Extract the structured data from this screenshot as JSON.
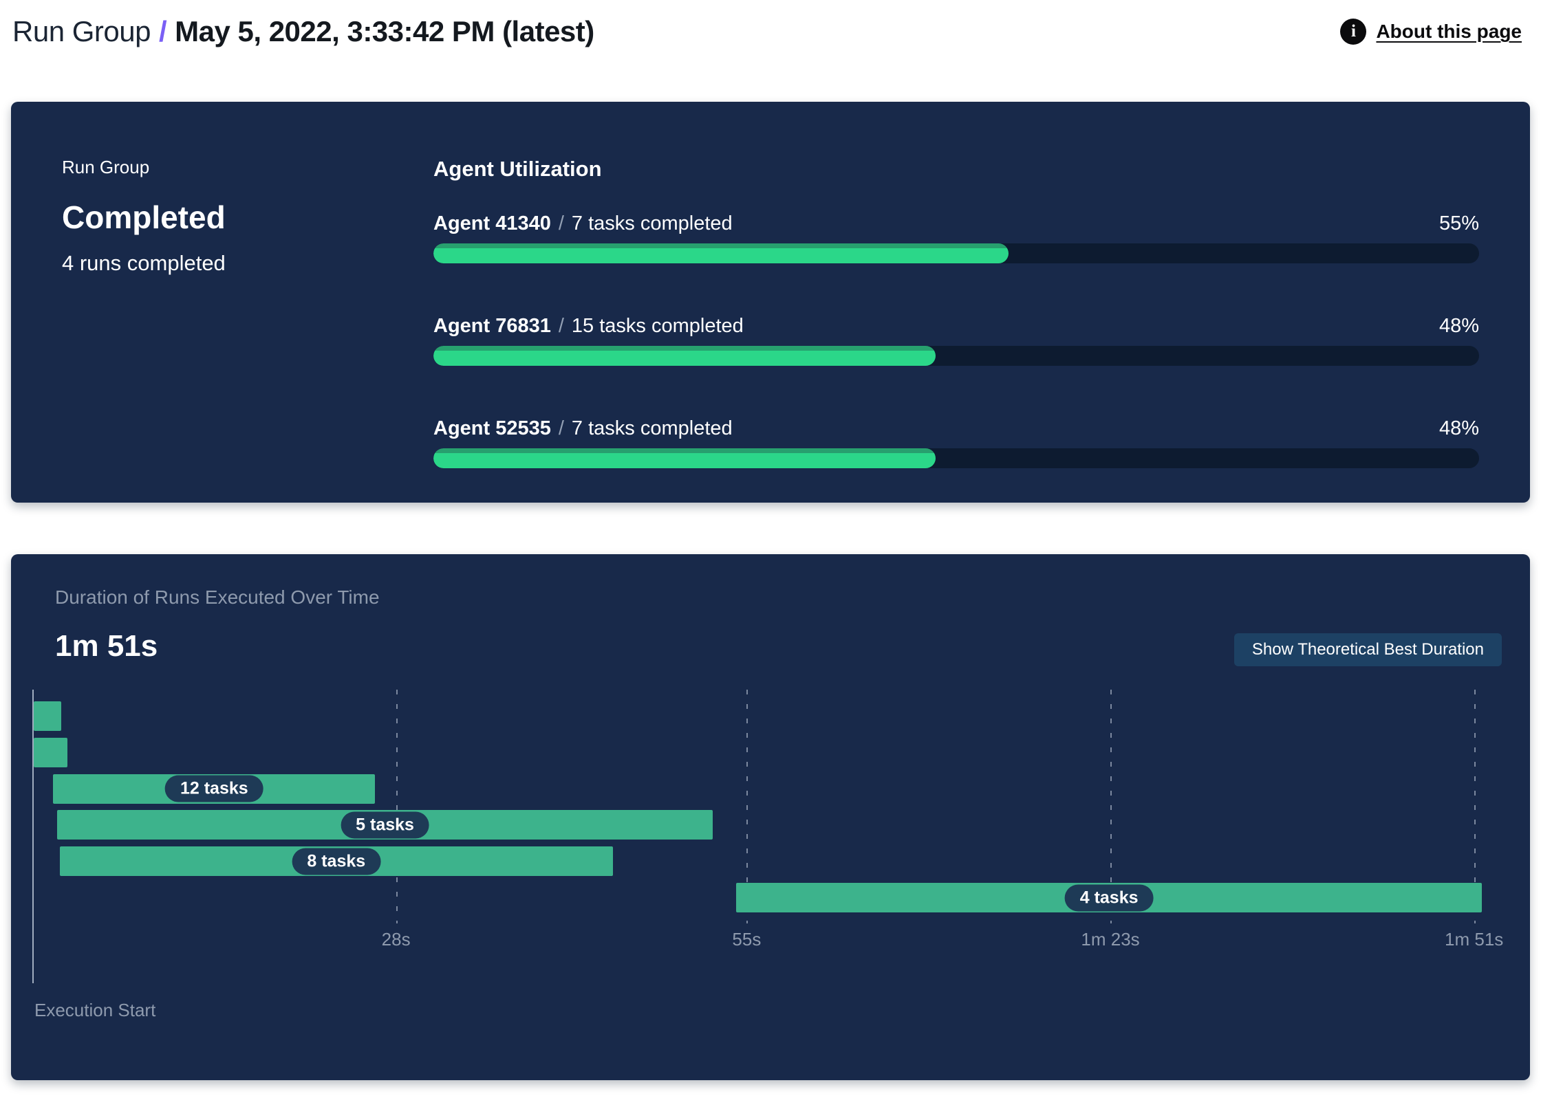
{
  "header": {
    "breadcrumb_root": "Run Group",
    "separator": "/",
    "title": "May 5, 2022, 3:33:42 PM (latest)",
    "about_link_label": "About this page",
    "info_icon_glyph": "i"
  },
  "summary": {
    "eyebrow": "Run Group",
    "status": "Completed",
    "subtext": "4 runs completed"
  },
  "utilization": {
    "heading": "Agent Utilization",
    "separator": "/",
    "rows": [
      {
        "agent": "Agent 41340",
        "detail": "7 tasks completed",
        "percent": 55,
        "percent_label": "55%"
      },
      {
        "agent": "Agent 76831",
        "detail": "15 tasks completed",
        "percent": 48,
        "percent_label": "48%"
      },
      {
        "agent": "Agent 52535",
        "detail": "7 tasks completed",
        "percent": 48,
        "percent_label": "48%"
      }
    ]
  },
  "duration": {
    "heading": "Duration of Runs Executed Over Time",
    "total": "1m 51s",
    "button_label": "Show Theoretical Best Duration",
    "execution_start": "Execution Start"
  },
  "chart_data": [
    {
      "type": "bar",
      "title": "Agent Utilization",
      "categories": [
        "Agent 41340",
        "Agent 76831",
        "Agent 52535"
      ],
      "values": [
        55,
        48,
        48
      ],
      "value_labels": [
        "55%",
        "48%",
        "48%"
      ],
      "annotations": [
        "7 tasks completed",
        "15 tasks completed",
        "7 tasks completed"
      ],
      "xlim": [
        0,
        100
      ],
      "orientation": "horizontal"
    },
    {
      "type": "bar",
      "orientation": "horizontal-gantt",
      "title": "Duration of Runs Executed Over Time",
      "total_label": "1m 51s",
      "x_axis": {
        "ticks_seconds": [
          28,
          55,
          83,
          111
        ],
        "tick_labels": [
          "28s",
          "55s",
          "1m 23s",
          "1m 51s"
        ],
        "max_seconds": 111.6,
        "origin_label": "Execution Start"
      },
      "bars": [
        {
          "label": "",
          "start_s": 0.1,
          "end_s": 2.2
        },
        {
          "label": "",
          "start_s": 0.1,
          "end_s": 2.7
        },
        {
          "label": "12 tasks",
          "start_s": 1.6,
          "end_s": 26.4
        },
        {
          "label": "5 tasks",
          "start_s": 1.9,
          "end_s": 52.4
        },
        {
          "label": "8 tasks",
          "start_s": 2.1,
          "end_s": 44.7
        },
        {
          "label": "4 tasks",
          "start_s": 54.2,
          "end_s": 111.6
        }
      ]
    }
  ],
  "colors": {
    "card_bg": "#18294a",
    "accent_purple": "#7a5ff5",
    "progress_fill": "#2bd789",
    "progress_fill_edge": "#27a06e",
    "progress_track": "#0d1b30",
    "gantt_bar": "#3db38c",
    "chip_bg": "#1e3a56",
    "muted_text": "#8e9aad",
    "button_bg": "#1d4164"
  }
}
